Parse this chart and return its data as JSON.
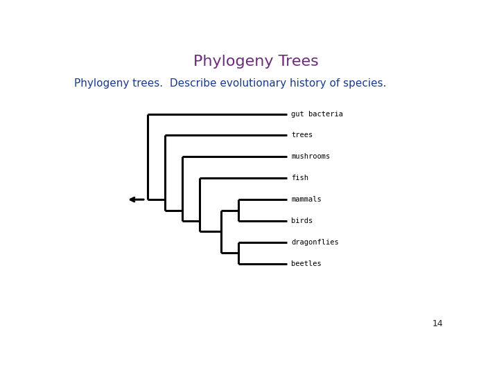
{
  "title": "Phylogeny Trees",
  "title_color": "#6B2C7A",
  "subtitle": "Phylogeny trees.  Describe evolutionary history of species.",
  "subtitle_color": "#1A3A8C",
  "subtitle_fontsize": 11,
  "title_fontsize": 16,
  "page_number": "14",
  "background_color": "#ffffff",
  "tree_color": "#000000",
  "tree_lw": 2.2,
  "species": [
    "gut bacteria",
    "trees",
    "mushrooms",
    "fish",
    "mammals",
    "birds",
    "dragonflies",
    "beetles"
  ],
  "label_fontsize": 7.5,
  "label_font": "monospace"
}
